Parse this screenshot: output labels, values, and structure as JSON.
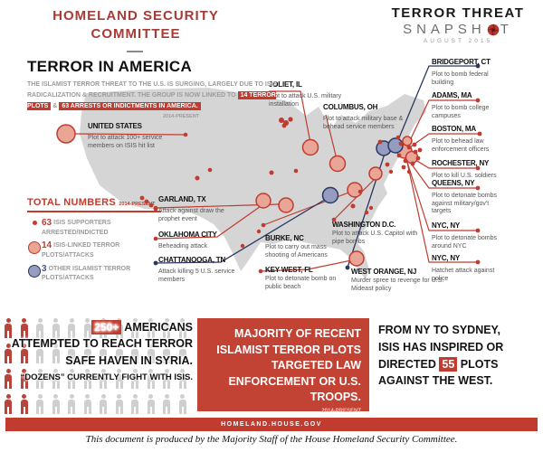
{
  "header": {
    "committee_line1": "HOMELAND SECURITY",
    "committee_line2": "COMMITTEE",
    "brand_line1": "TERROR THREAT",
    "brand_line2_pre": "SNAPSH",
    "brand_line2_post": "T",
    "brand_date": "AUGUST 2015"
  },
  "intro": {
    "title": "TERROR IN AMERICA",
    "subtitle_part1": "THE ISLAMIST TERROR THREAT TO THE U.S. IS SURGING, LARGELY DUE TO ISIS RADICALIZATION & RECRUITMENT. THE GROUP IS NOW LINKED TO",
    "badge_plots": "14 TERROR PLOTS",
    "subtitle_amp": "&",
    "badge_arrests": "63 ARRESTS OR INDICTMENTS IN AMERICA.",
    "timeframe": "2014-PRESENT"
  },
  "legend": {
    "title": "TOTAL NUMBERS",
    "timeframe": "2014-PRESENT",
    "items": [
      {
        "count": "63",
        "label": "ISIS SUPPORTERS ARRESTED/INDICTED",
        "marker": "red-dot"
      },
      {
        "count": "14",
        "label": "ISIS-LINKED TERROR PLOTS/ATTACKS",
        "marker": "salmon-circle"
      },
      {
        "count": "3",
        "label": "OTHER ISLAMIST TERROR PLOTS/ATTACKS",
        "marker": "blue-circle"
      }
    ]
  },
  "map": {
    "labels": [
      {
        "city": "UNITED STATES",
        "desc": "Plot to attack 100+ service members on ISIS hit list"
      },
      {
        "city": "JOLIET, IL",
        "desc": "Plot to attack U.S. military installation"
      },
      {
        "city": "COLUMBUS, OH",
        "desc": "Plot to attack military base & behead service members"
      },
      {
        "city": "GARLAND, TX",
        "desc": "Attack against draw the prophet event"
      },
      {
        "city": "OKLAHOMA CITY",
        "desc": "Beheading attack"
      },
      {
        "city": "CHATTANOOGA, TN",
        "desc": "Attack killing 5 U.S. service members"
      },
      {
        "city": "WASHINGTON D.C.",
        "desc": "Plot to attack U.S. Capitol with pipe bombs"
      },
      {
        "city": "BURKE, NC",
        "desc": "Plot to carry out mass shooting of Americans"
      },
      {
        "city": "KEY WEST, FL",
        "desc": "Plot to detonate bomb on public beach"
      },
      {
        "city": "WEST ORANGE, NJ",
        "desc": "Murder spree to revenge for U.S. Mideast policy"
      },
      {
        "city": "BRIDGEPORT, CT",
        "desc": "Plot to bomb federal building"
      },
      {
        "city": "ADAMS, MA",
        "desc": "Plot to bomb college campuses"
      },
      {
        "city": "BOSTON, MA",
        "desc": "Plot to behead law enforcement officers"
      },
      {
        "city": "ROCHESTER, NY",
        "desc": "Plot to kill U.S. soldiers"
      },
      {
        "city": "QUEENS, NY",
        "desc": "Plot to detonate bombs against military/gov't targets"
      },
      {
        "city": "NYC, NY",
        "desc": "Plot to detonate bombs around NYC"
      },
      {
        "city": "NYC, NY",
        "desc": "Hatchet attack against police"
      }
    ]
  },
  "bottom_left": {
    "badge": "250+",
    "line1_rest": "AMERICANS",
    "line2": "ATTEMPTED TO REACH TERROR",
    "line3": "SAFE HAVEN IN SYRIA.",
    "line4": "“DOZENS” CURRENTLY FIGHT WITH ISIS.",
    "figures": {
      "rows": 4,
      "cols": 12,
      "red_cols": 2
    }
  },
  "bottom_center": {
    "text": "MAJORITY OF RECENT ISLAMIST TERROR PLOTS TARGETED LAW ENFORCEMENT OR U.S. TROOPS.",
    "timeframe": "2014-PRESENT"
  },
  "bottom_right": {
    "before_badge": "FROM NY TO SYDNEY, ISIS HAS INSPIRED OR DIRECTED",
    "badge": "55",
    "after_badge": "PLOTS AGAINST THE WEST."
  },
  "footer": {
    "band_text": "HOMELAND.HOUSE.GOV",
    "note": "This document is produced by the Majority Staff of the House Homeland Security Committee."
  },
  "colors": {
    "accent_red": "#c13b2e",
    "committee_red": "#a73b35",
    "salmon_fill": "#e9a696",
    "blue_fill": "#959cc0",
    "navy_line": "#2a3760",
    "map_gray": "#d5d5d5"
  }
}
